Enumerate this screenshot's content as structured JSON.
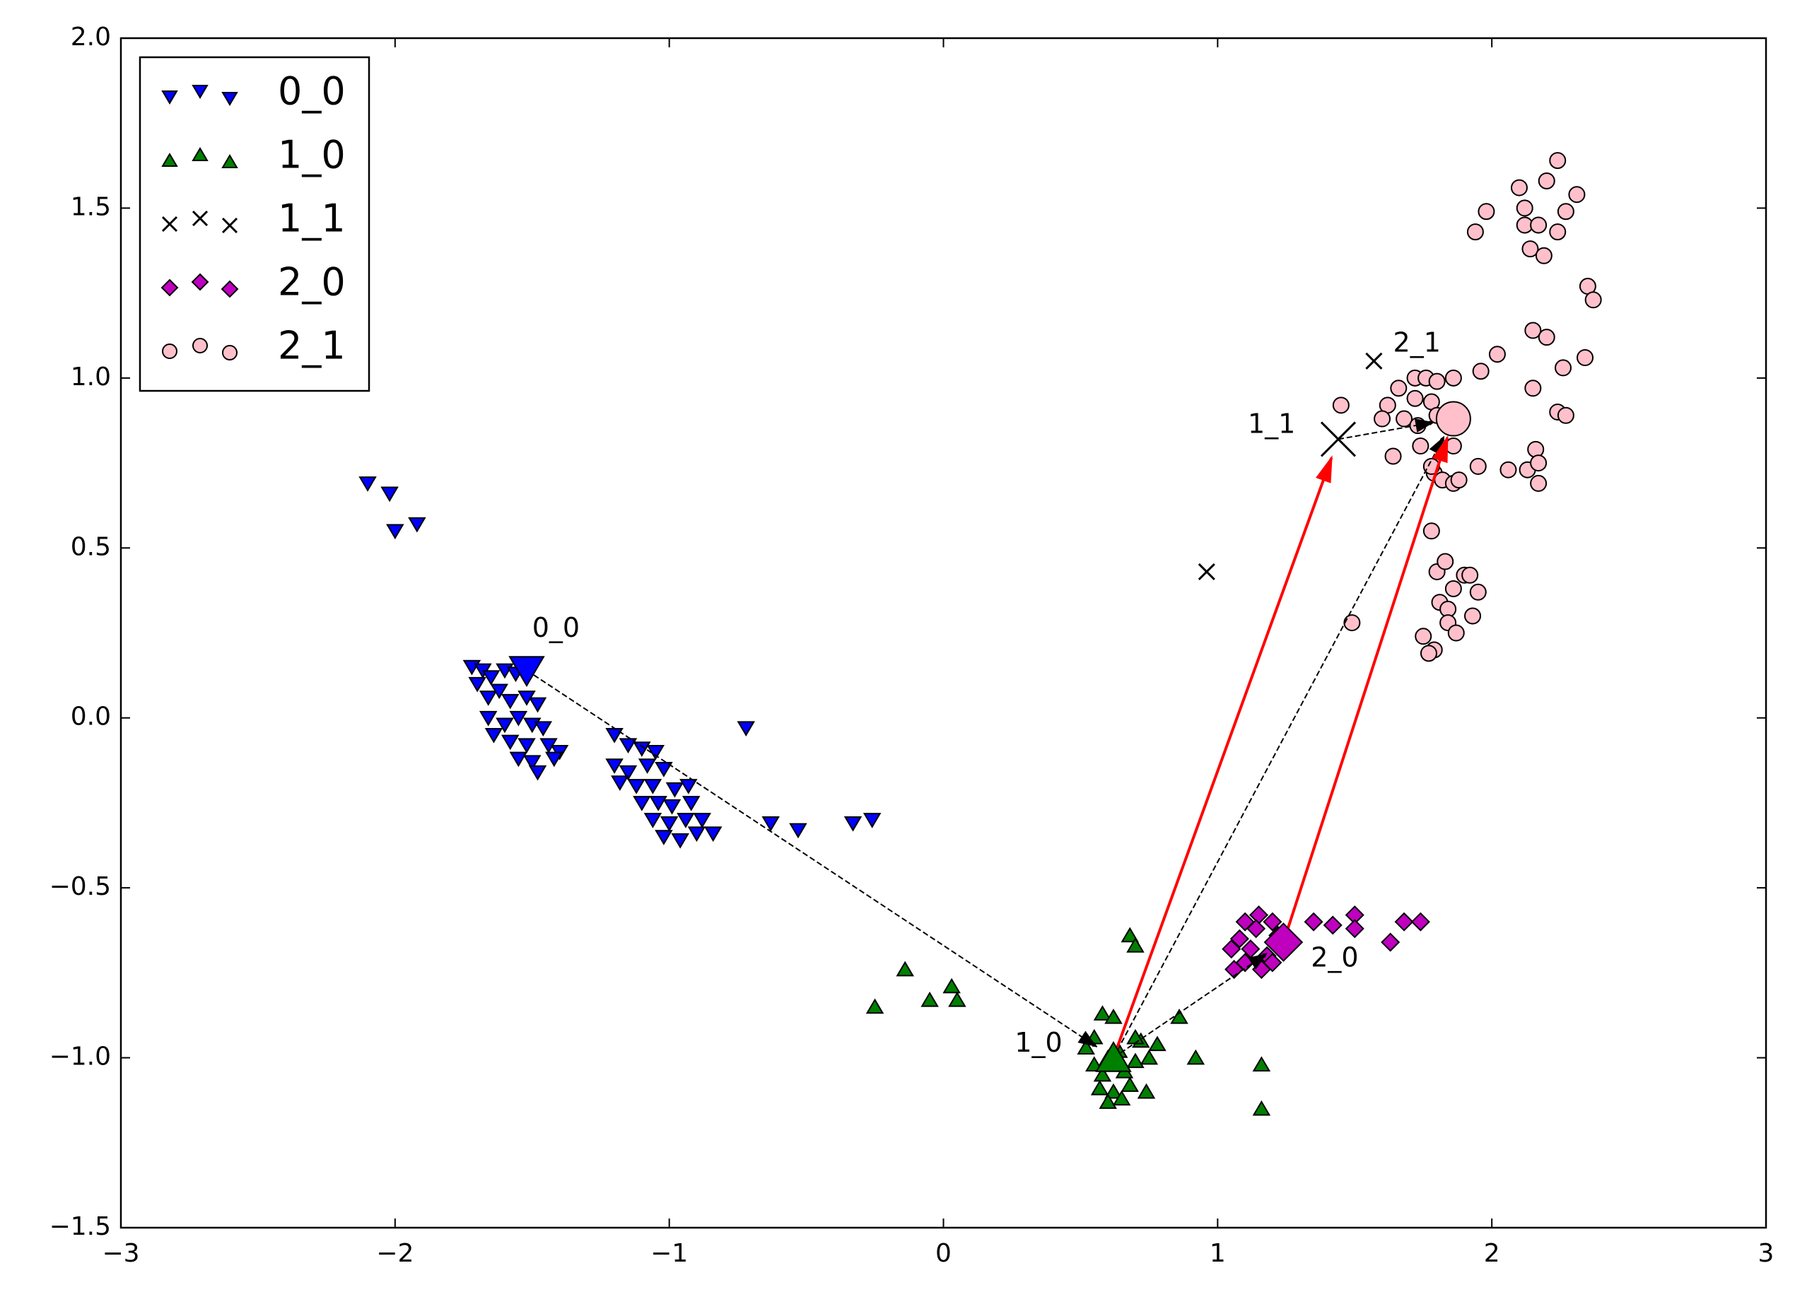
{
  "chart_data": {
    "type": "scatter",
    "xlim": [
      -3,
      3
    ],
    "ylim": [
      -1.5,
      2.0
    ],
    "xticks": [
      {
        "value": -3,
        "label": "−3"
      },
      {
        "value": -2,
        "label": "−2"
      },
      {
        "value": -1,
        "label": "−1"
      },
      0,
      1,
      2,
      3
    ],
    "yticks": [
      {
        "value": -1.5,
        "label": "−1.5"
      },
      {
        "value": -1.0,
        "label": "−1.0"
      },
      {
        "value": -0.5,
        "label": "−0.5"
      },
      {
        "value": 0,
        "label": "0.0"
      },
      {
        "value": 0.5,
        "label": "0.5"
      },
      {
        "value": 1.0,
        "label": "1.0"
      },
      {
        "value": 1.5,
        "label": "1.5"
      },
      {
        "value": 2.0,
        "label": "2.0"
      }
    ],
    "legend": "upper left",
    "series": [
      {
        "name": "0_0",
        "color": "#0000ff",
        "marker": "v",
        "x": [
          -2.1,
          -2.02,
          -2.0,
          -1.92,
          -1.72,
          -1.68,
          -1.65,
          -1.6,
          -1.56,
          -1.7,
          -1.66,
          -1.62,
          -1.58,
          -1.52,
          -1.48,
          -1.66,
          -1.6,
          -1.55,
          -1.5,
          -1.46,
          -1.64,
          -1.58,
          -1.52,
          -1.44,
          -1.55,
          -1.5,
          -1.4,
          -1.48,
          -1.42,
          -1.2,
          -1.15,
          -1.1,
          -1.05,
          -1.2,
          -1.15,
          -1.08,
          -1.02,
          -1.18,
          -1.12,
          -1.06,
          -0.98,
          -0.93,
          -1.1,
          -1.04,
          -0.99,
          -0.92,
          -1.06,
          -1.0,
          -0.94,
          -0.88,
          -1.02,
          -0.96,
          -0.9,
          -0.84,
          -0.72,
          -0.63,
          -0.53,
          -0.33,
          -0.26
        ],
        "values": [
          0.69,
          0.66,
          0.55,
          0.57,
          0.15,
          0.14,
          0.12,
          0.14,
          0.13,
          0.1,
          0.06,
          0.08,
          0.05,
          0.06,
          0.04,
          0.0,
          -0.02,
          0.0,
          -0.02,
          -0.03,
          -0.05,
          -0.07,
          -0.08,
          -0.08,
          -0.12,
          -0.13,
          -0.1,
          -0.16,
          -0.12,
          -0.05,
          -0.08,
          -0.09,
          -0.1,
          -0.14,
          -0.16,
          -0.14,
          -0.15,
          -0.19,
          -0.2,
          -0.2,
          -0.21,
          -0.2,
          -0.25,
          -0.25,
          -0.26,
          -0.25,
          -0.3,
          -0.31,
          -0.3,
          -0.3,
          -0.35,
          -0.36,
          -0.34,
          -0.34,
          -0.03,
          -0.31,
          -0.33,
          -0.31,
          -0.3
        ]
      },
      {
        "name": "1_0",
        "color": "#008000",
        "marker": "^",
        "x": [
          -0.25,
          -0.14,
          -0.05,
          0.03,
          0.05,
          0.68,
          0.7,
          0.86,
          0.92,
          1.16,
          1.16,
          0.58,
          0.62,
          0.52,
          0.55,
          0.58,
          0.6,
          0.64,
          0.66,
          0.7,
          0.72,
          0.75,
          0.68,
          0.62,
          0.57,
          0.6,
          0.65,
          0.74,
          0.7,
          0.78,
          0.55
        ],
        "values": [
          -0.85,
          -0.74,
          -0.83,
          -0.79,
          -0.83,
          -0.64,
          -0.67,
          -0.88,
          -1.0,
          -1.02,
          -1.15,
          -0.87,
          -0.88,
          -0.97,
          -1.02,
          -1.05,
          -1.0,
          -0.98,
          -1.04,
          -1.01,
          -0.95,
          -1.0,
          -1.08,
          -1.1,
          -1.09,
          -1.13,
          -1.12,
          -1.1,
          -0.94,
          -0.96,
          -0.94
        ]
      },
      {
        "name": "1_1",
        "color": "#000000",
        "marker": "x",
        "x": [
          1.57,
          0.96
        ],
        "values": [
          1.05,
          0.43
        ]
      },
      {
        "name": "2_0",
        "color": "#bf00bf",
        "marker": "D",
        "x": [
          1.1,
          1.15,
          1.2,
          1.08,
          1.12,
          1.18,
          1.22,
          1.05,
          1.1,
          1.16,
          1.2,
          1.25,
          1.14,
          1.35,
          1.42,
          1.5,
          1.5,
          1.63,
          1.68,
          1.74,
          1.06
        ],
        "values": [
          -0.6,
          -0.58,
          -0.6,
          -0.65,
          -0.68,
          -0.7,
          -0.64,
          -0.68,
          -0.72,
          -0.74,
          -0.72,
          -0.68,
          -0.62,
          -0.6,
          -0.61,
          -0.58,
          -0.62,
          -0.66,
          -0.6,
          -0.6,
          -0.74
        ]
      },
      {
        "name": "2_1",
        "color": "#ffc0cb",
        "marker": "o",
        "x": [
          1.94,
          1.98,
          2.1,
          2.12,
          2.12,
          2.14,
          2.17,
          2.19,
          2.2,
          2.24,
          2.24,
          2.27,
          2.31,
          2.35,
          2.37,
          2.15,
          2.2,
          2.26,
          2.34,
          2.15,
          2.02,
          1.96,
          2.24,
          2.27,
          1.86,
          1.95,
          2.06,
          2.13,
          2.16,
          2.17,
          2.17,
          1.72,
          1.76,
          1.8,
          1.86,
          1.66,
          1.72,
          1.78,
          1.62,
          1.68,
          1.73,
          1.8,
          1.6,
          1.45,
          1.64,
          1.74,
          1.79,
          1.82,
          1.86,
          1.88,
          1.78,
          1.8,
          1.83,
          1.86,
          1.9,
          1.92,
          1.81,
          1.84,
          1.84,
          1.95,
          1.93,
          1.87,
          1.75,
          1.79,
          1.77,
          1.49,
          1.78
        ],
        "values": [
          1.43,
          1.49,
          1.56,
          1.5,
          1.45,
          1.38,
          1.45,
          1.36,
          1.58,
          1.64,
          1.43,
          1.49,
          1.54,
          1.27,
          1.23,
          1.14,
          1.12,
          1.03,
          1.06,
          0.97,
          1.07,
          1.02,
          0.9,
          0.89,
          0.8,
          0.74,
          0.73,
          0.73,
          0.79,
          0.75,
          0.69,
          1.0,
          1.0,
          0.99,
          1.0,
          0.97,
          0.94,
          0.93,
          0.92,
          0.88,
          0.86,
          0.89,
          0.88,
          0.92,
          0.77,
          0.8,
          0.72,
          0.7,
          0.69,
          0.7,
          0.55,
          0.43,
          0.46,
          0.38,
          0.42,
          0.42,
          0.34,
          0.32,
          0.28,
          0.37,
          0.3,
          0.25,
          0.24,
          0.2,
          0.19,
          0.28,
          0.74
        ]
      }
    ],
    "centroids": [
      {
        "label": "0_0",
        "series": 0,
        "x": -1.52,
        "y": 0.14,
        "label_x": -1.5,
        "label_y": 0.26
      },
      {
        "label": "1_0",
        "series": 1,
        "x": 0.62,
        "y": -1.0,
        "label_x": 0.26,
        "label_y": -0.96
      },
      {
        "label": "1_1",
        "series": 2,
        "x": 1.44,
        "y": 0.82,
        "label_x": 1.11,
        "label_y": 0.86
      },
      {
        "label": "2_0",
        "series": 3,
        "x": 1.24,
        "y": -0.66,
        "label_x": 1.34,
        "label_y": -0.71
      },
      {
        "label": "2_1",
        "series": 4,
        "x": 1.86,
        "y": 0.88,
        "label_x": 1.64,
        "label_y": 1.1
      }
    ],
    "arrows": [
      {
        "from": 0,
        "to": 1,
        "color": "black",
        "dashed": true
      },
      {
        "from": 1,
        "to": 3,
        "color": "black",
        "dashed": true
      },
      {
        "from": 1,
        "to": 4,
        "color": "black",
        "dashed": true
      },
      {
        "from": 2,
        "to": 4,
        "color": "black",
        "dashed": true
      },
      {
        "from": 1,
        "to": 2,
        "color": "red",
        "dashed": false
      },
      {
        "from": 3,
        "to": 4,
        "color": "red",
        "dashed": false
      }
    ]
  }
}
